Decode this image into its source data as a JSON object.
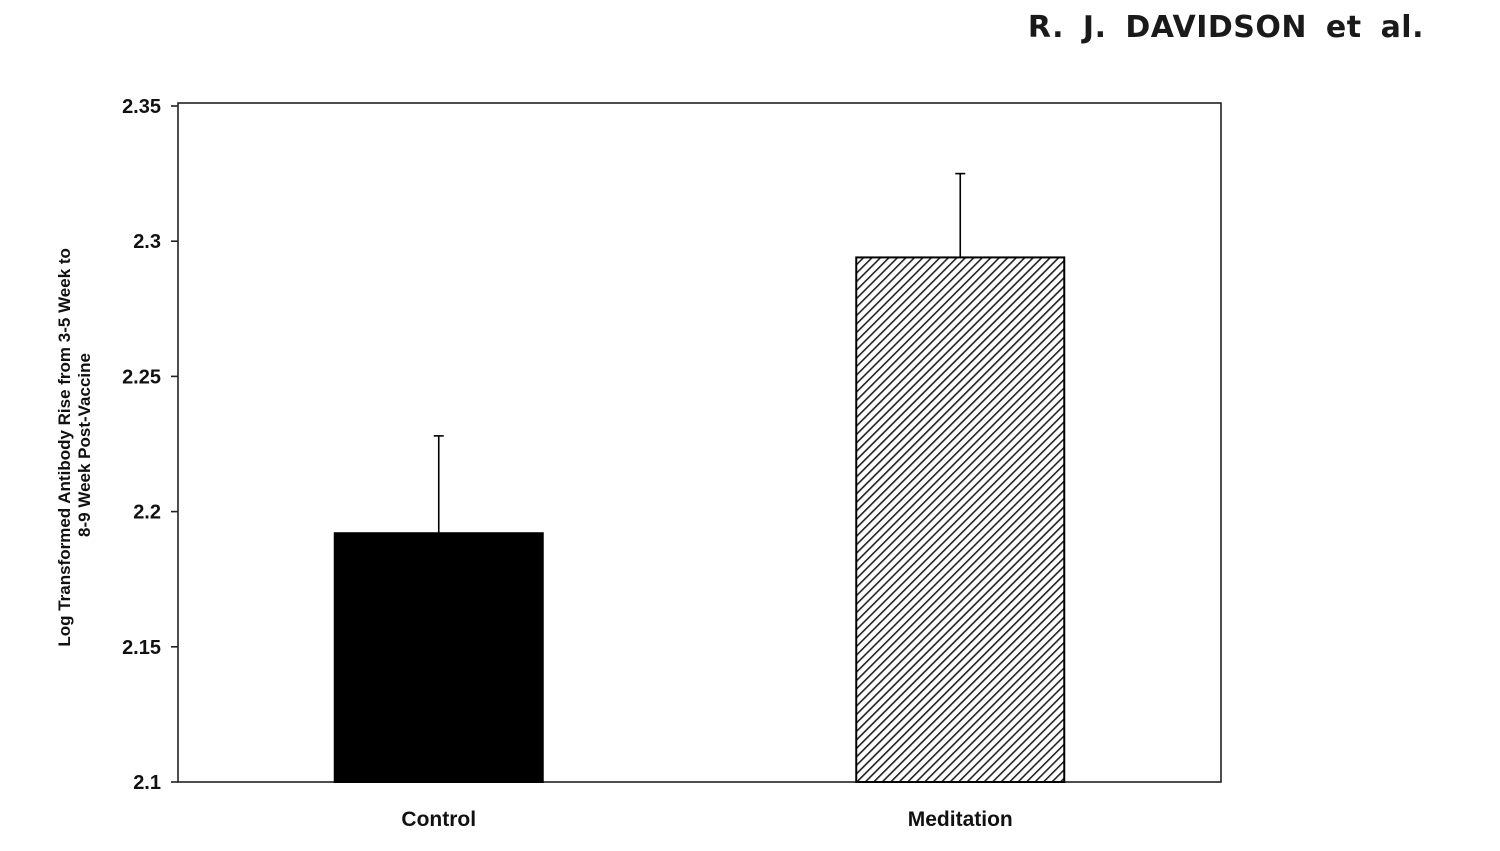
{
  "running_head": "R. J. DAVIDSON et al.",
  "colors": {
    "control_fill": "#000000",
    "meditation_hatch": "#222222",
    "axis": "#222222"
  },
  "chart_data": {
    "type": "bar",
    "categories": [
      "Control",
      "Meditation"
    ],
    "values": [
      2.192,
      2.294
    ],
    "error_plus": [
      0.036,
      0.031
    ],
    "ylabel_lines": [
      "Log Transformed Antibody Rise from 3-5 Week to",
      "8-9 Week Post-Vaccine"
    ],
    "xlabel": "",
    "ylim": [
      2.1,
      2.35
    ],
    "yticks": [
      2.1,
      2.15,
      2.2,
      2.25,
      2.3,
      2.35
    ],
    "ytick_labels": [
      "2.1",
      "2.15",
      "2.2",
      "2.25",
      "2.3",
      "2.35"
    ],
    "bar_styles": [
      "solid-black",
      "diagonal-hatch"
    ],
    "grid": false,
    "legend": "none"
  }
}
